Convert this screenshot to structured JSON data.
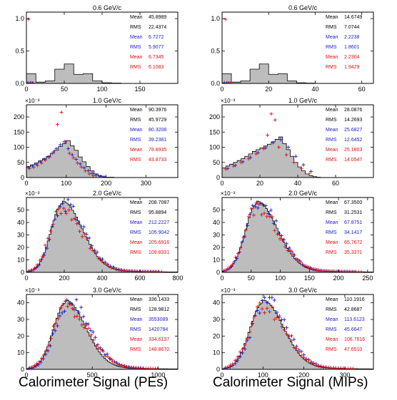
{
  "colors": {
    "hist_fill": "#bdbdbd",
    "black": "#000000",
    "blue": "#1a1acc",
    "red": "#e01010"
  },
  "footer": {
    "left": "Calorimeter Signal (PEs)",
    "right": "Calorimeter Signal (MIPs)"
  },
  "chart_data": [
    {
      "type": "histogram",
      "title": "0.6 GeV/c",
      "exponent_label": "",
      "xlim": [
        0,
        200
      ],
      "ylim": [
        0,
        1.1
      ],
      "xticks": [
        0,
        50,
        100,
        150
      ],
      "yticks": [
        0,
        0.5,
        1.0
      ],
      "ytick_labels": [
        "0.0",
        "0.5",
        "1.0"
      ],
      "stats": [
        {
          "label": "Mean",
          "value": "45.8989",
          "series": "black"
        },
        {
          "label": "RMS",
          "value": "22.4374",
          "series": "black"
        },
        {
          "label": "Mean",
          "value": "6.7272",
          "series": "blue"
        },
        {
          "label": "RMS",
          "value": "5.9077",
          "series": "blue"
        },
        {
          "label": "Mean",
          "value": "6.7345",
          "series": "red"
        },
        {
          "label": "RMS",
          "value": "6.1083",
          "series": "red"
        }
      ],
      "hist": {
        "bins": [
          0,
          12.5,
          25,
          37.5,
          50,
          62.5,
          75,
          87.5,
          100,
          112.5,
          125
        ],
        "values": [
          0.15,
          0.02,
          0.04,
          0.22,
          0.3,
          0.14,
          0.15,
          0.04,
          0.01,
          0.005
        ]
      },
      "points": [
        {
          "series": "blue",
          "x": [
            2,
            5,
            8
          ],
          "y": [
            0.01,
            0.005,
            0.003
          ]
        },
        {
          "series": "red",
          "x": [
            3,
            6,
            9
          ],
          "y": [
            0.99,
            0.01,
            0.004
          ]
        }
      ]
    },
    {
      "type": "histogram",
      "title": "0.6 GeV/c",
      "exponent_label": "",
      "xlim": [
        0,
        65
      ],
      "ylim": [
        0,
        1.1
      ],
      "xticks": [
        0,
        20,
        40,
        60
      ],
      "yticks": [
        0,
        0.5,
        1.0
      ],
      "ytick_labels": [
        "0.0",
        "0.5",
        "1.0"
      ],
      "stats": [
        {
          "label": "Mean",
          "value": "14.6749",
          "series": "black"
        },
        {
          "label": "RMS",
          "value": "7.0744",
          "series": "black"
        },
        {
          "label": "Mean",
          "value": "2.2238",
          "series": "blue"
        },
        {
          "label": "RMS",
          "value": "1.8601",
          "series": "blue"
        },
        {
          "label": "Mean",
          "value": "2.2304",
          "series": "red"
        },
        {
          "label": "RMS",
          "value": "1.9429",
          "series": "red"
        }
      ],
      "hist": {
        "bins": [
          0,
          4,
          8,
          12,
          16,
          20,
          24,
          28,
          32,
          36,
          40
        ],
        "values": [
          0.15,
          0.02,
          0.04,
          0.22,
          0.3,
          0.14,
          0.15,
          0.04,
          0.01,
          0.005
        ]
      },
      "points": [
        {
          "series": "blue",
          "x": [
            1,
            2,
            3
          ],
          "y": [
            0.01,
            0.005,
            0.003
          ]
        },
        {
          "series": "red",
          "x": [
            1.5,
            2.5,
            3.5
          ],
          "y": [
            0.99,
            0.01,
            0.004
          ]
        }
      ]
    },
    {
      "type": "histogram",
      "title": "1.0 GeV/c",
      "exponent_label": "×10⁻³",
      "xlim": [
        0,
        380
      ],
      "ylim": [
        0,
        240
      ],
      "xticks": [
        0,
        100,
        200,
        300
      ],
      "yticks": [
        0,
        50,
        100,
        150,
        200
      ],
      "ytick_labels": [
        "0",
        "50",
        "100",
        "150",
        "200"
      ],
      "stats": [
        {
          "label": "Mean",
          "value": "90.3976",
          "series": "black"
        },
        {
          "label": "RMS",
          "value": "45.9729",
          "series": "black"
        },
        {
          "label": "Mean",
          "value": "80.3208",
          "series": "blue"
        },
        {
          "label": "RMS",
          "value": "39.2381",
          "series": "blue"
        },
        {
          "label": "Mean",
          "value": "78.8935",
          "series": "red"
        },
        {
          "label": "RMS",
          "value": "43.8733",
          "series": "red"
        }
      ],
      "hist": {
        "bins": [
          0,
          10,
          20,
          30,
          40,
          50,
          60,
          70,
          80,
          90,
          100,
          110,
          120,
          130,
          140,
          150,
          160,
          170,
          180,
          190,
          200,
          210,
          220
        ],
        "values": [
          36,
          42,
          48,
          55,
          62,
          70,
          80,
          90,
          102,
          112,
          122,
          105,
          90,
          68,
          52,
          36,
          22,
          12,
          6,
          3,
          1,
          1
        ]
      },
      "points": [
        {
          "series": "blue",
          "x": [
            5,
            15,
            25,
            35,
            45,
            55,
            65,
            75,
            85,
            95,
            105,
            115,
            125,
            135,
            145,
            155,
            165,
            175,
            185,
            195
          ],
          "y": [
            33,
            38,
            44,
            52,
            60,
            68,
            80,
            95,
            108,
            118,
            95,
            75,
            60,
            45,
            32,
            22,
            14,
            8,
            4,
            2
          ]
        },
        {
          "series": "red",
          "x": [
            8,
            18,
            28,
            38,
            48,
            58,
            68,
            78,
            88,
            98,
            108,
            118,
            128,
            138,
            148,
            158,
            168
          ],
          "y": [
            30,
            34,
            40,
            48,
            58,
            68,
            85,
            175,
            215,
            118,
            80,
            65,
            48,
            35,
            22,
            12,
            6
          ]
        }
      ]
    },
    {
      "type": "histogram",
      "title": "1.0 GeV/c",
      "exponent_label": "×10⁻³",
      "xlim": [
        0,
        80
      ],
      "ylim": [
        0,
        240
      ],
      "xticks": [
        0,
        20,
        40,
        60
      ],
      "yticks": [
        0,
        50,
        100,
        150,
        200
      ],
      "ytick_labels": [
        "0",
        "50",
        "100",
        "150",
        "200"
      ],
      "stats": [
        {
          "label": "Mean",
          "value": "28.0876",
          "series": "black"
        },
        {
          "label": "RMS",
          "value": "14.2693",
          "series": "black"
        },
        {
          "label": "Mean",
          "value": "25.6827",
          "series": "blue"
        },
        {
          "label": "RMS",
          "value": "12.6452",
          "series": "blue"
        },
        {
          "label": "Mean",
          "value": "25.1803",
          "series": "red"
        },
        {
          "label": "RMS",
          "value": "14.0547",
          "series": "red"
        }
      ],
      "hist": {
        "bins": [
          0,
          2,
          4,
          6,
          8,
          10,
          12,
          14,
          16,
          18,
          20,
          22,
          24,
          26,
          28,
          30,
          32,
          34,
          36,
          38,
          40,
          42,
          44,
          46,
          48,
          50,
          52
        ],
        "values": [
          32,
          38,
          44,
          50,
          56,
          62,
          70,
          78,
          86,
          92,
          98,
          104,
          110,
          118,
          126,
          134,
          112,
          92,
          70,
          50,
          35,
          22,
          12,
          6,
          3,
          1
        ]
      },
      "points": [
        {
          "series": "blue",
          "x": [
            3,
            7,
            11,
            15,
            19,
            23,
            27,
            31,
            35,
            39,
            43,
            47
          ],
          "y": [
            30,
            40,
            52,
            66,
            82,
            98,
            115,
            125,
            100,
            70,
            42,
            20
          ]
        },
        {
          "series": "red",
          "x": [
            2,
            6,
            10,
            14,
            18,
            22,
            24,
            26,
            28,
            30,
            34,
            38,
            42,
            46
          ],
          "y": [
            28,
            38,
            50,
            62,
            78,
            95,
            140,
            210,
            190,
            100,
            75,
            50,
            30,
            12
          ]
        }
      ]
    },
    {
      "type": "histogram",
      "title": "2.0 GeV/c",
      "exponent_label": "×10⁻³",
      "xlim": [
        0,
        800
      ],
      "ylim": [
        0,
        60
      ],
      "xticks": [
        0,
        200,
        400,
        600,
        800
      ],
      "yticks": [
        0,
        10,
        20,
        30,
        40,
        50
      ],
      "ytick_labels": [
        "0",
        "10",
        "20",
        "30",
        "40",
        "50"
      ],
      "stats": [
        {
          "label": "Mean",
          "value": "208.7087",
          "series": "black"
        },
        {
          "label": "RMS",
          "value": "95.8894",
          "series": "black"
        },
        {
          "label": "Mean",
          "value": "212.2227",
          "series": "blue"
        },
        {
          "label": "RMS",
          "value": "105.9042",
          "series": "blue"
        },
        {
          "label": "Mean",
          "value": "205.6916",
          "series": "red"
        },
        {
          "label": "RMS",
          "value": "109.8331",
          "series": "red"
        }
      ],
      "curve": {
        "kind": "landau",
        "peak_x": 190,
        "peak_y": 55,
        "left_width": 60,
        "right_width": 105,
        "x_min": 0,
        "x_max": 800,
        "step": 10
      },
      "points": [
        {
          "series": "blue",
          "kind": "curve",
          "peak_x": 195,
          "peak_y": 53,
          "left_width": 62,
          "right_width": 110,
          "x_min": 10,
          "x_max": 700,
          "step": 14,
          "seed": 3
        },
        {
          "series": "red",
          "kind": "curve",
          "peak_x": 180,
          "peak_y": 50,
          "left_width": 60,
          "right_width": 115,
          "x_min": 15,
          "x_max": 720,
          "step": 14,
          "seed": 7
        }
      ]
    },
    {
      "type": "histogram",
      "title": "2.0 GeV/c",
      "exponent_label": "×10⁻³",
      "xlim": [
        0,
        260
      ],
      "ylim": [
        0,
        60
      ],
      "xticks": [
        0,
        50,
        100,
        150,
        200,
        250
      ],
      "yticks": [
        0,
        10,
        20,
        30,
        40,
        50
      ],
      "ytick_labels": [
        "0",
        "10",
        "20",
        "30",
        "40",
        "50"
      ],
      "stats": [
        {
          "label": "Mean",
          "value": "67.3500",
          "series": "black"
        },
        {
          "label": "RMS",
          "value": "31.2531",
          "series": "black"
        },
        {
          "label": "Mean",
          "value": "67.8751",
          "series": "blue"
        },
        {
          "label": "RMS",
          "value": "34.1417",
          "series": "blue"
        },
        {
          "label": "Mean",
          "value": "65.7672",
          "series": "red"
        },
        {
          "label": "RMS",
          "value": "35.3371",
          "series": "red"
        }
      ],
      "curve": {
        "kind": "landau",
        "peak_x": 60,
        "peak_y": 55,
        "left_width": 20,
        "right_width": 35,
        "x_min": 0,
        "x_max": 260,
        "step": 3
      },
      "points": [
        {
          "series": "blue",
          "kind": "curve",
          "peak_x": 62,
          "peak_y": 54,
          "left_width": 21,
          "right_width": 36,
          "x_min": 3,
          "x_max": 230,
          "step": 4.5,
          "seed": 11
        },
        {
          "series": "red",
          "kind": "curve",
          "peak_x": 58,
          "peak_y": 51,
          "left_width": 20,
          "right_width": 38,
          "x_min": 5,
          "x_max": 240,
          "step": 4.5,
          "seed": 13
        }
      ]
    },
    {
      "type": "histogram",
      "title": "3.0 GeV/c",
      "exponent_label": "×10⁻³",
      "xlim": [
        0,
        1150
      ],
      "ylim": [
        0,
        45
      ],
      "xticks": [
        0,
        500,
        1000
      ],
      "yticks": [
        0,
        10,
        20,
        30,
        40
      ],
      "ytick_labels": [
        "0",
        "10",
        "20",
        "30",
        "40"
      ],
      "stats": [
        {
          "label": "Mean",
          "value": "336.1433",
          "series": "black"
        },
        {
          "label": "RMS",
          "value": "128.9812",
          "series": "black"
        },
        {
          "label": "Mean",
          "value": "3553089",
          "series": "blue"
        },
        {
          "label": "RMS",
          "value": "1420784",
          "series": "blue"
        },
        {
          "label": "Mean",
          "value": "334.6137",
          "series": "red"
        },
        {
          "label": "RMS",
          "value": "148.8670",
          "series": "red"
        }
      ],
      "curve": {
        "kind": "landau",
        "peak_x": 300,
        "peak_y": 40,
        "left_width": 95,
        "right_width": 150,
        "x_min": 0,
        "x_max": 1150,
        "step": 14
      },
      "points": [
        {
          "series": "blue",
          "kind": "curve",
          "peak_x": 320,
          "peak_y": 40,
          "left_width": 100,
          "right_width": 160,
          "x_min": 20,
          "x_max": 900,
          "step": 18,
          "seed": 17
        },
        {
          "series": "red",
          "kind": "curve",
          "peak_x": 300,
          "peak_y": 37,
          "left_width": 100,
          "right_width": 170,
          "x_min": 25,
          "x_max": 1000,
          "step": 18,
          "seed": 19
        }
      ]
    },
    {
      "type": "histogram",
      "title": "3.0 GeV/c",
      "exponent_label": "×10⁻³",
      "xlim": [
        0,
        370
      ],
      "ylim": [
        0,
        45
      ],
      "xticks": [
        0,
        100,
        200,
        300
      ],
      "yticks": [
        0,
        10,
        20,
        30,
        40
      ],
      "ytick_labels": [
        "0",
        "10",
        "20",
        "30",
        "40"
      ],
      "stats": [
        {
          "label": "Mean",
          "value": "110.1916",
          "series": "black"
        },
        {
          "label": "RMS",
          "value": "42.8687",
          "series": "black"
        },
        {
          "label": "Mean",
          "value": "113.6123",
          "series": "blue"
        },
        {
          "label": "RMS",
          "value": "45.6647",
          "series": "blue"
        },
        {
          "label": "Mean",
          "value": "106.7616",
          "series": "red"
        },
        {
          "label": "RMS",
          "value": "47.6510",
          "series": "red"
        }
      ],
      "curve": {
        "kind": "landau",
        "peak_x": 100,
        "peak_y": 40,
        "left_width": 32,
        "right_width": 50,
        "x_min": 0,
        "x_max": 370,
        "step": 4.5
      },
      "points": [
        {
          "series": "blue",
          "kind": "curve",
          "peak_x": 105,
          "peak_y": 40,
          "left_width": 33,
          "right_width": 52,
          "x_min": 8,
          "x_max": 300,
          "step": 6,
          "seed": 23
        },
        {
          "series": "red",
          "kind": "curve",
          "peak_x": 98,
          "peak_y": 37,
          "left_width": 33,
          "right_width": 55,
          "x_min": 8,
          "x_max": 320,
          "step": 6,
          "seed": 29
        }
      ]
    }
  ]
}
